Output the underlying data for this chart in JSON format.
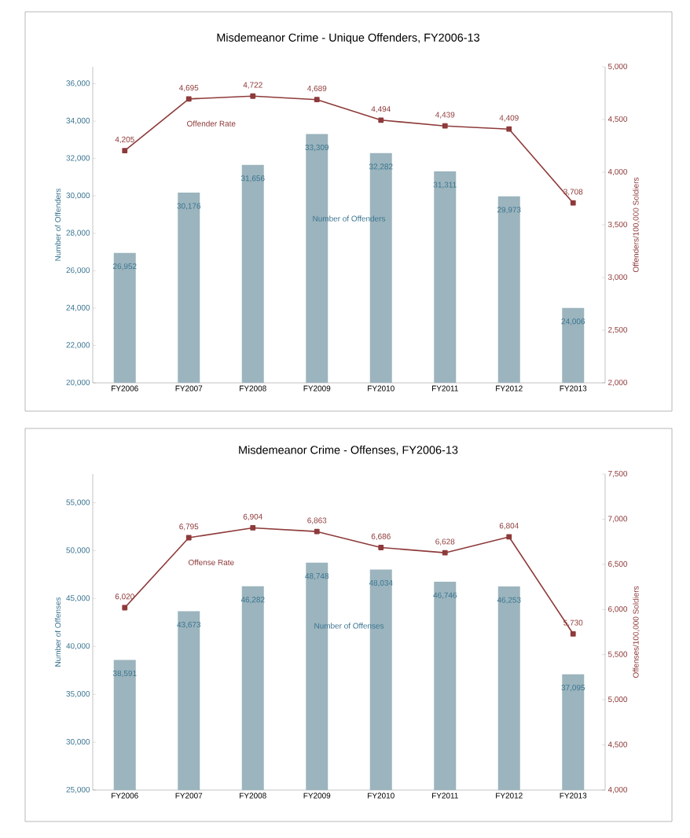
{
  "chart_data": [
    {
      "type": "bar",
      "title": "Misdemeanor Crime - Unique Offenders, FY2006-13",
      "ylabel": "Number of Offenders",
      "y2label": "Offenders/100,000 Soldiers",
      "categories": [
        "FY2006",
        "FY2007",
        "FY2008",
        "FY2009",
        "FY2010",
        "FY2011",
        "FY2012",
        "FY2013"
      ],
      "ylim": [
        20000,
        36900
      ],
      "yticks": [
        {
          "value": 20000,
          "label": "20,000"
        },
        {
          "value": 22000,
          "label": "22,000"
        },
        {
          "value": 24000,
          "label": "24,000"
        },
        {
          "value": 26000,
          "label": "26,000"
        },
        {
          "value": 28000,
          "label": "28,000"
        },
        {
          "value": 30000,
          "label": "30,000"
        },
        {
          "value": 32000,
          "label": "32,000"
        },
        {
          "value": 34000,
          "label": "34,000"
        },
        {
          "value": 36000,
          "label": "36,000"
        }
      ],
      "y2lim": [
        2000,
        5000
      ],
      "y2ticks": [
        {
          "value": 2000,
          "label": "2,000"
        },
        {
          "value": 2500,
          "label": "2,500"
        },
        {
          "value": 3000,
          "label": "3,000"
        },
        {
          "value": 3500,
          "label": "3,500"
        },
        {
          "value": 4000,
          "label": "4,000"
        },
        {
          "value": 4500,
          "label": "4,500"
        },
        {
          "value": 5000,
          "label": "5,000"
        }
      ],
      "marker": "square",
      "series": [
        {
          "name": "Number of Offenders",
          "type": "bar",
          "color": "#9bb4bd",
          "values": [
            26952,
            30176,
            31656,
            33309,
            32282,
            31311,
            29973,
            24006
          ],
          "value_labels": [
            "26,952",
            "30,176",
            "31,656",
            "33,309",
            "32,282",
            "31,311",
            "29,973",
            "24,006"
          ]
        },
        {
          "name": "Offender Rate",
          "type": "line",
          "axis": "y2",
          "color": "#8e3a3a",
          "values": [
            4205,
            4695,
            4722,
            4689,
            4494,
            4439,
            4409,
            3708
          ],
          "value_labels": [
            "4,205",
            "4,695",
            "4,722",
            "4,689",
            "4,494",
            "4,439",
            "4,409",
            "3,708"
          ]
        }
      ]
    },
    {
      "type": "bar",
      "title": "Misdemeanor Crime - Offenses, FY2006-13",
      "ylabel": "Number of Offenses",
      "y2label": "Offenses/100,000 Soldiers",
      "categories": [
        "FY2006",
        "FY2007",
        "FY2008",
        "FY2009",
        "FY2010",
        "FY2011",
        "FY2012",
        "FY2013"
      ],
      "ylim": [
        25000,
        58000
      ],
      "yticks": [
        {
          "value": 25000,
          "label": "25,000"
        },
        {
          "value": 30000,
          "label": "30,000"
        },
        {
          "value": 35000,
          "label": "35,000"
        },
        {
          "value": 40000,
          "label": "40,000"
        },
        {
          "value": 45000,
          "label": "45,000"
        },
        {
          "value": 50000,
          "label": "50,000"
        },
        {
          "value": 55000,
          "label": "55,000"
        }
      ],
      "y2lim": [
        4000,
        7500
      ],
      "y2ticks": [
        {
          "value": 4000,
          "label": "4,000"
        },
        {
          "value": 4500,
          "label": "4,500"
        },
        {
          "value": 5000,
          "label": "5,000"
        },
        {
          "value": 5500,
          "label": "5,500"
        },
        {
          "value": 6000,
          "label": "6,000"
        },
        {
          "value": 6500,
          "label": "6,500"
        },
        {
          "value": 7000,
          "label": "7,000"
        },
        {
          "value": 7500,
          "label": "7,500"
        }
      ],
      "marker": "square",
      "series": [
        {
          "name": "Number of Offenses",
          "type": "bar",
          "color": "#9bb4bd",
          "values": [
            38591,
            43673,
            46282,
            48748,
            48034,
            46746,
            46253,
            37095
          ],
          "value_labels": [
            "38,591",
            "43,673",
            "46,282",
            "48,748",
            "48,034",
            "46,746",
            "46,253",
            "37,095"
          ]
        },
        {
          "name": "Offense Rate",
          "type": "line",
          "axis": "y2",
          "color": "#8e3a3a",
          "values": [
            6020,
            6795,
            6904,
            6863,
            6686,
            6628,
            6804,
            5730
          ],
          "value_labels": [
            "6,020",
            "6,795",
            "6,904",
            "6,863",
            "6,686",
            "6,628",
            "6,804",
            "5,730"
          ]
        }
      ]
    }
  ]
}
